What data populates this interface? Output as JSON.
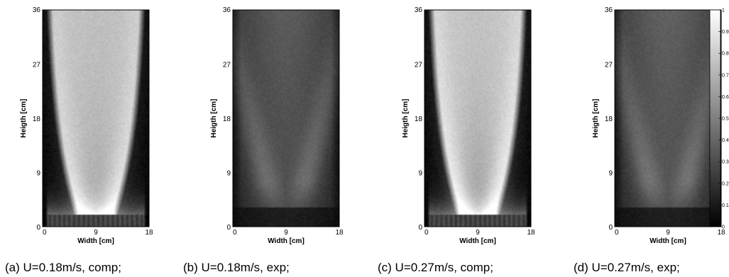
{
  "chart_data": [
    {
      "type": "heatmap",
      "caption": "(a) U=0.18m/s, comp;",
      "xlabel": "Width [cm]",
      "ylabel": "Heigth [cm]",
      "xlim": [
        0,
        18
      ],
      "ylim": [
        0,
        36
      ],
      "xticks": [
        0,
        9,
        18
      ],
      "yticks": [
        0,
        9,
        18,
        27,
        36
      ],
      "pattern": "comp",
      "style": {
        "peak": 0.72,
        "core": 0.16,
        "band": 0.14,
        "base": 0.04
      }
    },
    {
      "type": "heatmap",
      "caption": "(b) U=0.18m/s, exp;",
      "xlabel": "Width [cm]",
      "ylabel": "Heigth [cm]",
      "xlim": [
        0,
        18
      ],
      "ylim": [
        0,
        36
      ],
      "xticks": [
        0,
        9,
        18
      ],
      "yticks": [
        0,
        9,
        18,
        27,
        36
      ],
      "pattern": "exp",
      "style": {
        "peak": 0.3,
        "core": 0.22,
        "band": 0.2,
        "base": 0.06
      }
    },
    {
      "type": "heatmap",
      "caption": "(c) U=0.27m/s, comp;",
      "xlabel": "Width [cm]",
      "ylabel": "Heigth [cm]",
      "xlim": [
        0,
        18
      ],
      "ylim": [
        0,
        36
      ],
      "xticks": [
        0,
        9,
        18
      ],
      "yticks": [
        0,
        9,
        18,
        27,
        36
      ],
      "pattern": "comp",
      "style": {
        "peak": 0.74,
        "core": 0.25,
        "band": 0.18,
        "base": 0.04
      }
    },
    {
      "type": "heatmap",
      "caption": "(d) U=0.27m/s, exp;",
      "xlabel": "Width [cm]",
      "ylabel": "Heigth [cm]",
      "xlim": [
        0,
        18
      ],
      "ylim": [
        0,
        36
      ],
      "xticks": [
        0,
        9,
        18
      ],
      "yticks": [
        0,
        9,
        18,
        27,
        36
      ],
      "pattern": "exp",
      "style": {
        "peak": 0.32,
        "core": 0.24,
        "band": 0.2,
        "base": 0.06
      }
    }
  ],
  "colorbar": {
    "colormap": "gray",
    "range": [
      0,
      1
    ],
    "ticks": [
      "0",
      "0.1",
      "0.2",
      "0.3",
      "0.4",
      "0.5",
      "0.6",
      "0.7",
      "0.8",
      "0.9",
      "1"
    ]
  }
}
